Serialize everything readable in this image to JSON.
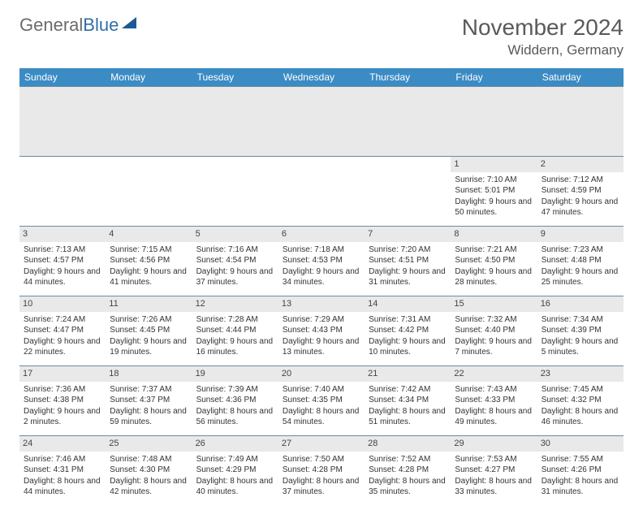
{
  "brand": {
    "part1": "General",
    "part2": "Blue"
  },
  "title": "November 2024",
  "location": "Widdern, Germany",
  "colors": {
    "header_bg": "#3b8bc4",
    "header_text": "#ffffff",
    "daynum_bg": "#e9e9e9",
    "border": "#6b8aa3",
    "title_color": "#5a5a5a",
    "logo_gray": "#6b6b6b",
    "logo_blue": "#2f6fa8",
    "cell_text": "#333333"
  },
  "typography": {
    "title_fontsize": 28,
    "location_fontsize": 17,
    "dayheader_fontsize": 12,
    "daynum_fontsize": 11,
    "cell_fontsize": 10
  },
  "day_headers": [
    "Sunday",
    "Monday",
    "Tuesday",
    "Wednesday",
    "Thursday",
    "Friday",
    "Saturday"
  ],
  "weeks": [
    [
      null,
      null,
      null,
      null,
      null,
      {
        "n": "1",
        "sunrise": "Sunrise: 7:10 AM",
        "sunset": "Sunset: 5:01 PM",
        "daylight": "Daylight: 9 hours and 50 minutes."
      },
      {
        "n": "2",
        "sunrise": "Sunrise: 7:12 AM",
        "sunset": "Sunset: 4:59 PM",
        "daylight": "Daylight: 9 hours and 47 minutes."
      }
    ],
    [
      {
        "n": "3",
        "sunrise": "Sunrise: 7:13 AM",
        "sunset": "Sunset: 4:57 PM",
        "daylight": "Daylight: 9 hours and 44 minutes."
      },
      {
        "n": "4",
        "sunrise": "Sunrise: 7:15 AM",
        "sunset": "Sunset: 4:56 PM",
        "daylight": "Daylight: 9 hours and 41 minutes."
      },
      {
        "n": "5",
        "sunrise": "Sunrise: 7:16 AM",
        "sunset": "Sunset: 4:54 PM",
        "daylight": "Daylight: 9 hours and 37 minutes."
      },
      {
        "n": "6",
        "sunrise": "Sunrise: 7:18 AM",
        "sunset": "Sunset: 4:53 PM",
        "daylight": "Daylight: 9 hours and 34 minutes."
      },
      {
        "n": "7",
        "sunrise": "Sunrise: 7:20 AM",
        "sunset": "Sunset: 4:51 PM",
        "daylight": "Daylight: 9 hours and 31 minutes."
      },
      {
        "n": "8",
        "sunrise": "Sunrise: 7:21 AM",
        "sunset": "Sunset: 4:50 PM",
        "daylight": "Daylight: 9 hours and 28 minutes."
      },
      {
        "n": "9",
        "sunrise": "Sunrise: 7:23 AM",
        "sunset": "Sunset: 4:48 PM",
        "daylight": "Daylight: 9 hours and 25 minutes."
      }
    ],
    [
      {
        "n": "10",
        "sunrise": "Sunrise: 7:24 AM",
        "sunset": "Sunset: 4:47 PM",
        "daylight": "Daylight: 9 hours and 22 minutes."
      },
      {
        "n": "11",
        "sunrise": "Sunrise: 7:26 AM",
        "sunset": "Sunset: 4:45 PM",
        "daylight": "Daylight: 9 hours and 19 minutes."
      },
      {
        "n": "12",
        "sunrise": "Sunrise: 7:28 AM",
        "sunset": "Sunset: 4:44 PM",
        "daylight": "Daylight: 9 hours and 16 minutes."
      },
      {
        "n": "13",
        "sunrise": "Sunrise: 7:29 AM",
        "sunset": "Sunset: 4:43 PM",
        "daylight": "Daylight: 9 hours and 13 minutes."
      },
      {
        "n": "14",
        "sunrise": "Sunrise: 7:31 AM",
        "sunset": "Sunset: 4:42 PM",
        "daylight": "Daylight: 9 hours and 10 minutes."
      },
      {
        "n": "15",
        "sunrise": "Sunrise: 7:32 AM",
        "sunset": "Sunset: 4:40 PM",
        "daylight": "Daylight: 9 hours and 7 minutes."
      },
      {
        "n": "16",
        "sunrise": "Sunrise: 7:34 AM",
        "sunset": "Sunset: 4:39 PM",
        "daylight": "Daylight: 9 hours and 5 minutes."
      }
    ],
    [
      {
        "n": "17",
        "sunrise": "Sunrise: 7:36 AM",
        "sunset": "Sunset: 4:38 PM",
        "daylight": "Daylight: 9 hours and 2 minutes."
      },
      {
        "n": "18",
        "sunrise": "Sunrise: 7:37 AM",
        "sunset": "Sunset: 4:37 PM",
        "daylight": "Daylight: 8 hours and 59 minutes."
      },
      {
        "n": "19",
        "sunrise": "Sunrise: 7:39 AM",
        "sunset": "Sunset: 4:36 PM",
        "daylight": "Daylight: 8 hours and 56 minutes."
      },
      {
        "n": "20",
        "sunrise": "Sunrise: 7:40 AM",
        "sunset": "Sunset: 4:35 PM",
        "daylight": "Daylight: 8 hours and 54 minutes."
      },
      {
        "n": "21",
        "sunrise": "Sunrise: 7:42 AM",
        "sunset": "Sunset: 4:34 PM",
        "daylight": "Daylight: 8 hours and 51 minutes."
      },
      {
        "n": "22",
        "sunrise": "Sunrise: 7:43 AM",
        "sunset": "Sunset: 4:33 PM",
        "daylight": "Daylight: 8 hours and 49 minutes."
      },
      {
        "n": "23",
        "sunrise": "Sunrise: 7:45 AM",
        "sunset": "Sunset: 4:32 PM",
        "daylight": "Daylight: 8 hours and 46 minutes."
      }
    ],
    [
      {
        "n": "24",
        "sunrise": "Sunrise: 7:46 AM",
        "sunset": "Sunset: 4:31 PM",
        "daylight": "Daylight: 8 hours and 44 minutes."
      },
      {
        "n": "25",
        "sunrise": "Sunrise: 7:48 AM",
        "sunset": "Sunset: 4:30 PM",
        "daylight": "Daylight: 8 hours and 42 minutes."
      },
      {
        "n": "26",
        "sunrise": "Sunrise: 7:49 AM",
        "sunset": "Sunset: 4:29 PM",
        "daylight": "Daylight: 8 hours and 40 minutes."
      },
      {
        "n": "27",
        "sunrise": "Sunrise: 7:50 AM",
        "sunset": "Sunset: 4:28 PM",
        "daylight": "Daylight: 8 hours and 37 minutes."
      },
      {
        "n": "28",
        "sunrise": "Sunrise: 7:52 AM",
        "sunset": "Sunset: 4:28 PM",
        "daylight": "Daylight: 8 hours and 35 minutes."
      },
      {
        "n": "29",
        "sunrise": "Sunrise: 7:53 AM",
        "sunset": "Sunset: 4:27 PM",
        "daylight": "Daylight: 8 hours and 33 minutes."
      },
      {
        "n": "30",
        "sunrise": "Sunrise: 7:55 AM",
        "sunset": "Sunset: 4:26 PM",
        "daylight": "Daylight: 8 hours and 31 minutes."
      }
    ]
  ]
}
